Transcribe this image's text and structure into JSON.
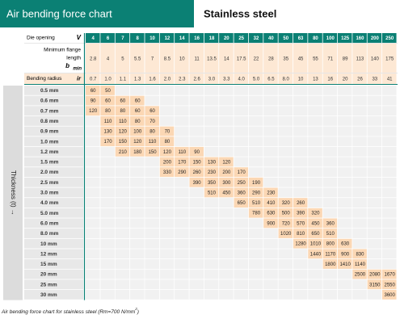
{
  "header": {
    "title": "Air bending force chart",
    "material": "Stainless steel"
  },
  "table": {
    "die_opening_label": "Die opening",
    "die_opening_symbol": "V",
    "die_openings": [
      "4",
      "6",
      "7",
      "8",
      "10",
      "12",
      "14",
      "16",
      "18",
      "20",
      "25",
      "32",
      "40",
      "50",
      "63",
      "80",
      "100",
      "125",
      "160",
      "200",
      "250"
    ],
    "flange_label_1": "Minimum flange",
    "flange_label_2": "length",
    "flange_symbol": "b",
    "flange_subscript": "min",
    "flange_lengths": [
      "2.8",
      "4",
      "5",
      "5.5",
      "7",
      "8.5",
      "10",
      "11",
      "13.5",
      "14",
      "17.5",
      "22",
      "28",
      "35",
      "45",
      "55",
      "71",
      "89",
      "113",
      "140",
      "175"
    ],
    "radius_label": "Bending radius",
    "radius_symbol": "ir",
    "radii": [
      "0.7",
      "1.0",
      "1.1",
      "1.3",
      "1.6",
      "2.0",
      "2.3",
      "2.6",
      "3.0",
      "3.3",
      "4.0",
      "5.0",
      "6.5",
      "8.0",
      "10",
      "13",
      "16",
      "20",
      "26",
      "33",
      "41"
    ],
    "thickness_axis_label": "Thickness (t) →",
    "rows": [
      {
        "thickness": "0.5 mm",
        "cells": [
          "60",
          "50",
          null,
          null,
          null,
          null,
          null,
          null,
          null,
          null,
          null,
          null,
          null,
          null,
          null,
          null,
          null,
          null,
          null,
          null,
          null
        ]
      },
      {
        "thickness": "0.6 mm",
        "cells": [
          "90",
          "60",
          "60",
          "60",
          null,
          null,
          null,
          null,
          null,
          null,
          null,
          null,
          null,
          null,
          null,
          null,
          null,
          null,
          null,
          null,
          null
        ]
      },
      {
        "thickness": "0.7 mm",
        "cells": [
          "120",
          "80",
          "80",
          "60",
          "60",
          null,
          null,
          null,
          null,
          null,
          null,
          null,
          null,
          null,
          null,
          null,
          null,
          null,
          null,
          null,
          null
        ]
      },
      {
        "thickness": "0.8 mm",
        "cells": [
          null,
          "110",
          "110",
          "80",
          "70",
          null,
          null,
          null,
          null,
          null,
          null,
          null,
          null,
          null,
          null,
          null,
          null,
          null,
          null,
          null,
          null
        ]
      },
      {
        "thickness": "0.9 mm",
        "cells": [
          null,
          "130",
          "120",
          "100",
          "80",
          "70",
          null,
          null,
          null,
          null,
          null,
          null,
          null,
          null,
          null,
          null,
          null,
          null,
          null,
          null,
          null
        ]
      },
      {
        "thickness": "1.0 mm",
        "cells": [
          null,
          "170",
          "150",
          "120",
          "110",
          "80",
          null,
          null,
          null,
          null,
          null,
          null,
          null,
          null,
          null,
          null,
          null,
          null,
          null,
          null,
          null
        ]
      },
      {
        "thickness": "1.2 mm",
        "cells": [
          null,
          null,
          "210",
          "180",
          "150",
          "120",
          "110",
          "90",
          null,
          null,
          null,
          null,
          null,
          null,
          null,
          null,
          null,
          null,
          null,
          null,
          null
        ]
      },
      {
        "thickness": "1.5 mm",
        "cells": [
          null,
          null,
          null,
          null,
          null,
          "200",
          "170",
          "150",
          "130",
          "120",
          null,
          null,
          null,
          null,
          null,
          null,
          null,
          null,
          null,
          null,
          null
        ]
      },
      {
        "thickness": "2.0 mm",
        "cells": [
          null,
          null,
          null,
          null,
          null,
          "330",
          "290",
          "260",
          "230",
          "200",
          "170",
          null,
          null,
          null,
          null,
          null,
          null,
          null,
          null,
          null,
          null
        ]
      },
      {
        "thickness": "2.5 mm",
        "cells": [
          null,
          null,
          null,
          null,
          null,
          null,
          null,
          "390",
          "350",
          "300",
          "250",
          "190",
          null,
          null,
          null,
          null,
          null,
          null,
          null,
          null,
          null
        ]
      },
      {
        "thickness": "3.0 mm",
        "cells": [
          null,
          null,
          null,
          null,
          null,
          null,
          null,
          null,
          "510",
          "450",
          "360",
          "290",
          "230",
          null,
          null,
          null,
          null,
          null,
          null,
          null,
          null
        ]
      },
      {
        "thickness": "4.0 mm",
        "cells": [
          null,
          null,
          null,
          null,
          null,
          null,
          null,
          null,
          null,
          null,
          "650",
          "510",
          "410",
          "320",
          "260",
          null,
          null,
          null,
          null,
          null,
          null
        ]
      },
      {
        "thickness": "5.0 mm",
        "cells": [
          null,
          null,
          null,
          null,
          null,
          null,
          null,
          null,
          null,
          null,
          null,
          "780",
          "630",
          "500",
          "390",
          "320",
          null,
          null,
          null,
          null,
          null
        ]
      },
      {
        "thickness": "6.0 mm",
        "cells": [
          null,
          null,
          null,
          null,
          null,
          null,
          null,
          null,
          null,
          null,
          null,
          null,
          "900",
          "720",
          "570",
          "450",
          "360",
          null,
          null,
          null,
          null
        ]
      },
      {
        "thickness": "8.0 mm",
        "cells": [
          null,
          null,
          null,
          null,
          null,
          null,
          null,
          null,
          null,
          null,
          null,
          null,
          null,
          "1020",
          "810",
          "650",
          "510",
          null,
          null,
          null,
          null
        ]
      },
      {
        "thickness": "10 mm",
        "cells": [
          null,
          null,
          null,
          null,
          null,
          null,
          null,
          null,
          null,
          null,
          null,
          null,
          null,
          null,
          "1280",
          "1010",
          "800",
          "630",
          null,
          null,
          null
        ]
      },
      {
        "thickness": "12 mm",
        "cells": [
          null,
          null,
          null,
          null,
          null,
          null,
          null,
          null,
          null,
          null,
          null,
          null,
          null,
          null,
          null,
          "1440",
          "1170",
          "900",
          "830",
          null,
          null
        ]
      },
      {
        "thickness": "15 mm",
        "cells": [
          null,
          null,
          null,
          null,
          null,
          null,
          null,
          null,
          null,
          null,
          null,
          null,
          null,
          null,
          null,
          null,
          "1800",
          "1410",
          "1140",
          null,
          null
        ]
      },
      {
        "thickness": "20 mm",
        "cells": [
          null,
          null,
          null,
          null,
          null,
          null,
          null,
          null,
          null,
          null,
          null,
          null,
          null,
          null,
          null,
          null,
          null,
          null,
          "2500",
          "2080",
          "1670"
        ]
      },
      {
        "thickness": "25 mm",
        "cells": [
          null,
          null,
          null,
          null,
          null,
          null,
          null,
          null,
          null,
          null,
          null,
          null,
          null,
          null,
          null,
          null,
          null,
          null,
          null,
          "3150",
          "2550"
        ]
      },
      {
        "thickness": "30 mm",
        "cells": [
          null,
          null,
          null,
          null,
          null,
          null,
          null,
          null,
          null,
          null,
          null,
          null,
          null,
          null,
          null,
          null,
          null,
          null,
          null,
          null,
          "3600"
        ]
      }
    ]
  },
  "caption": {
    "text": "Air bending force chart for stainless steel (Rm=700 N/mm",
    "superscript": "2",
    "close": ")"
  }
}
